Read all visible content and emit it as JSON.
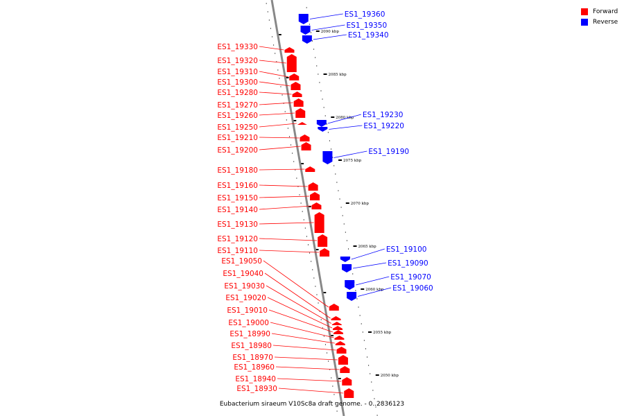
{
  "legend": {
    "forward_label": "Forward",
    "reverse_label": "Reverse",
    "forward_color": "#ff0000",
    "reverse_color": "#0000ff"
  },
  "caption": "Eubacterium siraeum V10Sc8a draft genome. - 0..2836123",
  "map": {
    "backbone_color": "#888888",
    "scale": [
      {
        "kbp": 2090,
        "label": "2090 kbp"
      },
      {
        "kbp": 2085,
        "label": "2085 kbp"
      },
      {
        "kbp": 2080,
        "label": "2080 kbp"
      },
      {
        "kbp": 2075,
        "label": "2075 kbp"
      },
      {
        "kbp": 2070,
        "label": "2070 kbp"
      },
      {
        "kbp": 2065,
        "label": "2065 kbp"
      },
      {
        "kbp": 2060,
        "label": "2060 kbp"
      },
      {
        "kbp": 2055,
        "label": "2055 kbp"
      },
      {
        "kbp": 2050,
        "label": "2050 kbp"
      }
    ],
    "reverse_genes": [
      {
        "name": "ES1_19360"
      },
      {
        "name": "ES1_19350"
      },
      {
        "name": "ES1_19340"
      },
      {
        "name": "ES1_19230"
      },
      {
        "name": "ES1_19220"
      },
      {
        "name": "ES1_19190"
      },
      {
        "name": "ES1_19100"
      },
      {
        "name": "ES1_19090"
      },
      {
        "name": "ES1_19070"
      },
      {
        "name": "ES1_19060"
      }
    ],
    "forward_genes": [
      {
        "name": "ES1_19330"
      },
      {
        "name": "ES1_19320"
      },
      {
        "name": "ES1_19310"
      },
      {
        "name": "ES1_19300"
      },
      {
        "name": "ES1_19280"
      },
      {
        "name": "ES1_19270"
      },
      {
        "name": "ES1_19260"
      },
      {
        "name": "ES1_19250"
      },
      {
        "name": "ES1_19210"
      },
      {
        "name": "ES1_19200"
      },
      {
        "name": "ES1_19180"
      },
      {
        "name": "ES1_19160"
      },
      {
        "name": "ES1_19150"
      },
      {
        "name": "ES1_19140"
      },
      {
        "name": "ES1_19130"
      },
      {
        "name": "ES1_19120"
      },
      {
        "name": "ES1_19110"
      },
      {
        "name": "ES1_19050"
      },
      {
        "name": "ES1_19040"
      },
      {
        "name": "ES1_19030"
      },
      {
        "name": "ES1_19020"
      },
      {
        "name": "ES1_19010"
      },
      {
        "name": "ES1_19000"
      },
      {
        "name": "ES1_18990"
      },
      {
        "name": "ES1_18980"
      },
      {
        "name": "ES1_18970"
      },
      {
        "name": "ES1_18960"
      },
      {
        "name": "ES1_18940"
      },
      {
        "name": "ES1_18930"
      }
    ]
  }
}
